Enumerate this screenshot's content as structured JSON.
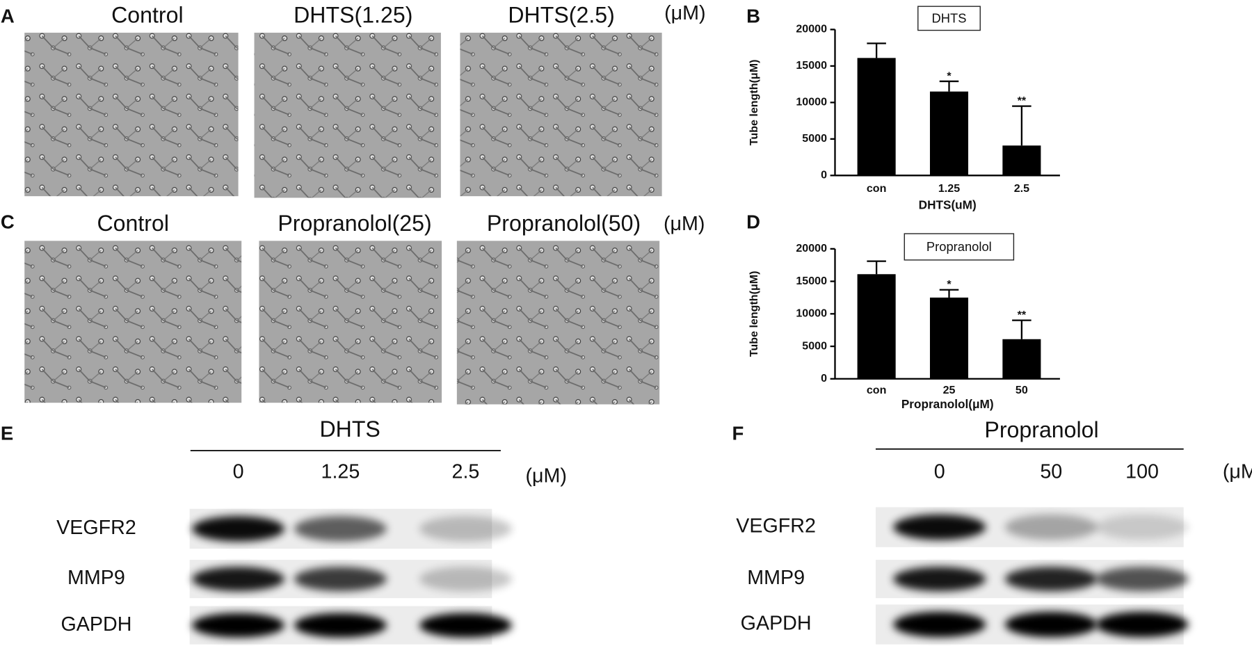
{
  "panels": [
    {
      "letter": "A",
      "conditions": [
        "Control",
        "DHTS(1.25)",
        "DHTS(2.5)"
      ],
      "unit": "(μM)"
    },
    {
      "letter": "C",
      "conditions": [
        "Control",
        "Propranolol(25)",
        "Propranolol(50)"
      ],
      "unit": "(μM)"
    }
  ],
  "chart_data": [
    {
      "letter": "B",
      "type": "bar",
      "title": "DHTS",
      "y_label": "Tube length(μM)",
      "x_label": "DHTS(uM)",
      "categories": [
        "con",
        "1.25",
        "2.5"
      ],
      "values": [
        16100,
        11500,
        4100
      ],
      "errors": [
        2000,
        1400,
        5400
      ],
      "significance": [
        null,
        "*",
        "**"
      ],
      "color": "#000000",
      "ylim": [
        0,
        20000
      ],
      "yticks": [
        0,
        5000,
        10000,
        15000,
        20000
      ]
    },
    {
      "letter": "D",
      "type": "bar",
      "title": "Propranolol",
      "y_label": "Tube length(μM)",
      "x_label": "Propranolol(μM)",
      "categories": [
        "con",
        "25",
        "50"
      ],
      "values": [
        16100,
        12500,
        6100
      ],
      "errors": [
        2000,
        1200,
        2900
      ],
      "significance": [
        null,
        "*",
        "**"
      ],
      "color": "#000000",
      "ylim": [
        0,
        20000
      ],
      "yticks": [
        0,
        5000,
        10000,
        15000,
        20000
      ]
    }
  ],
  "blots": [
    {
      "letter": "E",
      "treatment": "DHTS",
      "doses": [
        "0",
        "1.25",
        "2.5"
      ],
      "unit": "(μM)",
      "proteins": [
        "VEGFR2",
        "MMP9",
        "GAPDH"
      ]
    },
    {
      "letter": "F",
      "treatment": "Propranolol",
      "doses": [
        "0",
        "50",
        "100"
      ],
      "unit": "(μM)",
      "proteins": [
        "VEGFR2",
        "MMP9",
        "GAPDH"
      ]
    }
  ]
}
